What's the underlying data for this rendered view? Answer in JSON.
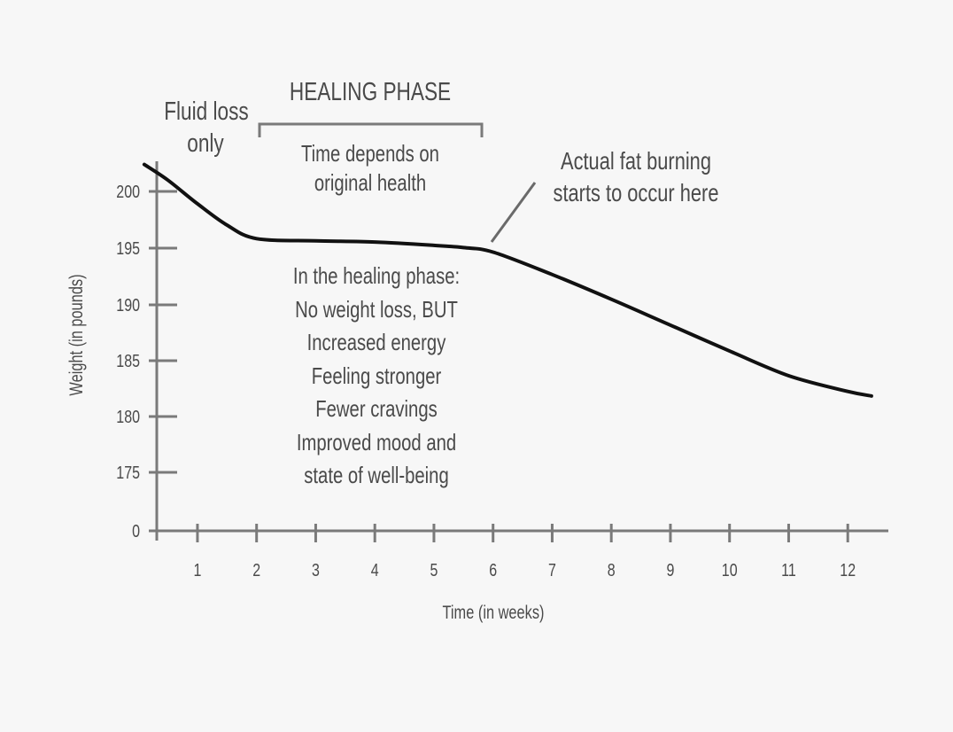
{
  "chart_data": {
    "type": "line",
    "title": "",
    "xlabel": "Time (in weeks)",
    "ylabel": "Weight (in pounds)",
    "x_ticks": [
      "1",
      "2",
      "3",
      "4",
      "5",
      "6",
      "7",
      "8",
      "9",
      "10",
      "11",
      "12"
    ],
    "y_ticks": [
      "0",
      "175",
      "180",
      "185",
      "190",
      "195",
      "200"
    ],
    "y_axis_break": "axis jumps from 0 to 175",
    "xlim": [
      0,
      12.7
    ],
    "ylim": [
      172.5,
      203
    ],
    "grid": false,
    "legend": null,
    "series": [
      {
        "name": "Weight",
        "x": [
          0.1,
          0.5,
          1.0,
          1.5,
          2.0,
          3.0,
          4.0,
          5.0,
          5.5,
          6.0,
          7.0,
          8.0,
          9.0,
          10.0,
          11.0,
          12.0,
          12.4
        ],
        "values": [
          202.4,
          201.0,
          198.9,
          197.0,
          195.8,
          195.6,
          195.5,
          195.2,
          195.0,
          194.6,
          192.6,
          190.4,
          188.1,
          185.8,
          183.6,
          182.2,
          181.8
        ]
      }
    ],
    "annotations": [
      {
        "text": "Fluid loss only",
        "x_range": [
          0,
          2
        ]
      },
      {
        "text": "HEALING PHASE",
        "x_range": [
          2,
          6
        ],
        "bracket": true
      },
      {
        "text": "Time depends on original health",
        "x_range": [
          2,
          6
        ]
      },
      {
        "text": "Actual fat burning starts to occur here",
        "points_to_x": 6
      },
      {
        "text": "In the healing phase: No weight loss, BUT Increased energy Feeling stronger Fewer cravings Improved mood and state of well-being"
      }
    ]
  },
  "labels": {
    "fluid_loss": [
      "Fluid loss",
      "only"
    ],
    "healing_phase": "HEALING PHASE",
    "time_depends": [
      "Time depends on",
      "original health"
    ],
    "fat_burning": [
      "Actual fat burning",
      "starts to occur here"
    ],
    "healing_list": [
      "In the healing phase:",
      "No weight loss, BUT",
      "Increased energy",
      "Feeling stronger",
      "Fewer cravings",
      "Improved mood and",
      "state of well-being"
    ]
  },
  "colors": {
    "background": "#f7f7f7",
    "text": "#4a4a4a",
    "axis": "#7a7a7a",
    "curve": "#111111"
  }
}
